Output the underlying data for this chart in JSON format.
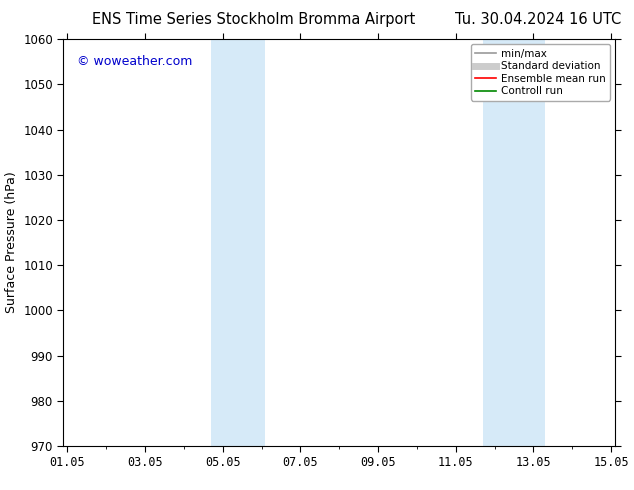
{
  "title_left": "ENS Time Series Stockholm Bromma Airport",
  "title_right": "Tu. 30.04.2024 16 UTC",
  "ylabel": "Surface Pressure (hPa)",
  "ylim": [
    970,
    1060
  ],
  "yticks": [
    970,
    980,
    990,
    1000,
    1010,
    1020,
    1030,
    1040,
    1050,
    1060
  ],
  "xtick_labels": [
    "01.05",
    "03.05",
    "05.05",
    "07.05",
    "09.05",
    "11.05",
    "13.05",
    "15.05"
  ],
  "xtick_positions": [
    0,
    2,
    4,
    6,
    8,
    10,
    12,
    14
  ],
  "xlim": [
    -0.1,
    14.1
  ],
  "shade_bands": [
    {
      "xmin": 3.7,
      "xmax": 5.1
    },
    {
      "xmin": 10.7,
      "xmax": 12.3
    }
  ],
  "shade_color": "#d6eaf8",
  "background_color": "#ffffff",
  "watermark": "© woweather.com",
  "watermark_color": "#0000cc",
  "legend_items": [
    {
      "label": "min/max",
      "color": "#999999",
      "lw": 1.2,
      "style": "-"
    },
    {
      "label": "Standard deviation",
      "color": "#cccccc",
      "lw": 5,
      "style": "-"
    },
    {
      "label": "Ensemble mean run",
      "color": "#ff0000",
      "lw": 1.2,
      "style": "-"
    },
    {
      "label": "Controll run",
      "color": "#008800",
      "lw": 1.2,
      "style": "-"
    }
  ],
  "title_fontsize": 10.5,
  "ylabel_fontsize": 9,
  "tick_fontsize": 8.5,
  "legend_fontsize": 7.5,
  "watermark_fontsize": 9
}
